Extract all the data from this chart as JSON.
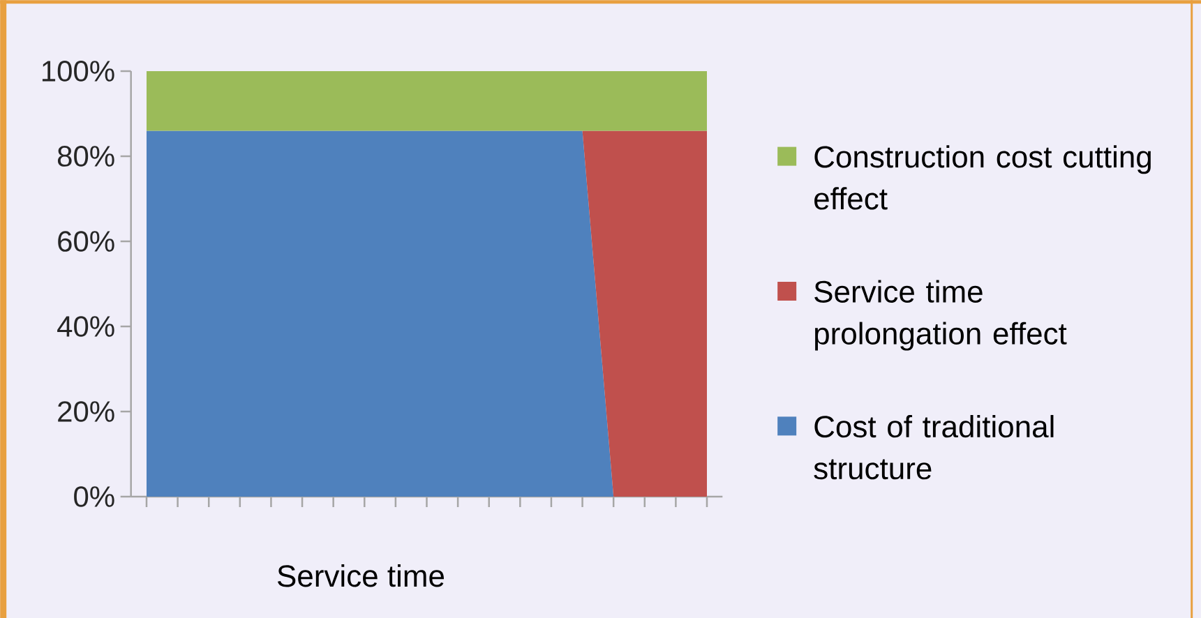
{
  "chart_data": {
    "type": "area",
    "stacked": true,
    "xlabel": "Service time",
    "categories": [
      null,
      null,
      null,
      null,
      null,
      null,
      null,
      null,
      null,
      null,
      null,
      null,
      null,
      null,
      null,
      null,
      null,
      null,
      null
    ],
    "series": [
      {
        "name": "Cost of traditional structure",
        "color": "#4f81bd",
        "values": [
          86,
          86,
          86,
          86,
          86,
          86,
          86,
          86,
          86,
          86,
          86,
          86,
          86,
          86,
          86,
          0,
          null,
          null,
          null
        ]
      },
      {
        "name": "Service time prolongation effect",
        "color": "#c0504d",
        "values": [
          null,
          null,
          null,
          null,
          null,
          null,
          null,
          null,
          null,
          null,
          null,
          null,
          null,
          null,
          0,
          86,
          86,
          86,
          86
        ]
      },
      {
        "name": "Construction cost cutting effect",
        "color": "#9bbb59",
        "values": [
          14,
          14,
          14,
          14,
          14,
          14,
          14,
          14,
          14,
          14,
          14,
          14,
          14,
          14,
          14,
          14,
          14,
          14,
          14
        ]
      }
    ],
    "ylim": [
      0,
      100
    ],
    "yticks": [
      {
        "value": 0,
        "label": "0%"
      },
      {
        "value": 20,
        "label": "20%"
      },
      {
        "value": 40,
        "label": "40%"
      },
      {
        "value": 60,
        "label": "60%"
      },
      {
        "value": 80,
        "label": "80%"
      },
      {
        "value": 100,
        "label": "100%"
      }
    ],
    "legend": "right"
  }
}
